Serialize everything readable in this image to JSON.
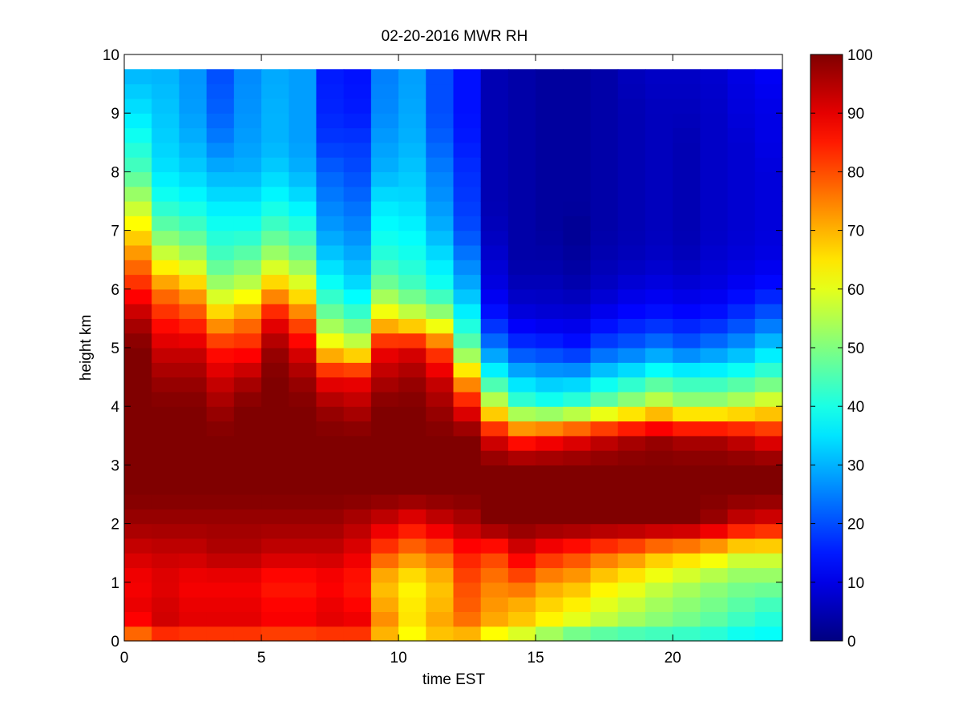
{
  "chart_data": {
    "type": "heatmap",
    "title": "02-20-2016 MWR RH",
    "xlabel": "time EST",
    "ylabel": "height km",
    "xlim": [
      0,
      24
    ],
    "ylim": [
      0,
      10
    ],
    "x_ticks": [
      0,
      5,
      10,
      15,
      20
    ],
    "y_ticks": [
      0,
      1,
      2,
      3,
      4,
      5,
      6,
      7,
      8,
      9,
      10
    ],
    "colorbar": {
      "range": [
        0,
        100
      ],
      "ticks": [
        0,
        10,
        20,
        30,
        40,
        50,
        60,
        70,
        80,
        90,
        100
      ],
      "colormap": "jet"
    },
    "time_hours": [
      0.5,
      1.5,
      2.5,
      3.5,
      4.5,
      5.5,
      6.5,
      7.5,
      8.5,
      9.5,
      10.5,
      11.5,
      12.5,
      13.5,
      14.5,
      15.5,
      16.5,
      17.5,
      18.5,
      19.5,
      20.5,
      21.5,
      22.5,
      23.5
    ],
    "height_profile_km": [
      0.0,
      0.25,
      0.5,
      1.0,
      1.5,
      2.0,
      2.5,
      3.0,
      3.5,
      4.0,
      4.5,
      5.0,
      5.5,
      6.0,
      6.5,
      7.0,
      7.5,
      8.0,
      8.5,
      9.0,
      9.75
    ],
    "rh_percent": [
      [
        70,
        85,
        90,
        88,
        92,
        97,
        100,
        100,
        100,
        100,
        100,
        100,
        95,
        85,
        75,
        65,
        55,
        45,
        40,
        35,
        30
      ],
      [
        75,
        92,
        92,
        90,
        93,
        97,
        100,
        100,
        100,
        100,
        97,
        92,
        85,
        75,
        60,
        48,
        40,
        35,
        33,
        32,
        30
      ],
      [
        75,
        90,
        90,
        88,
        93,
        97,
        100,
        100,
        100,
        100,
        97,
        92,
        82,
        70,
        55,
        45,
        38,
        33,
        30,
        28,
        27
      ],
      [
        75,
        90,
        90,
        88,
        95,
        97,
        100,
        100,
        100,
        97,
        92,
        85,
        70,
        55,
        45,
        40,
        35,
        30,
        25,
        22,
        20
      ],
      [
        75,
        90,
        90,
        88,
        95,
        97,
        100,
        100,
        100,
        100,
        95,
        85,
        75,
        58,
        48,
        40,
        35,
        30,
        28,
        27,
        26
      ],
      [
        75,
        88,
        88,
        85,
        93,
        97,
        100,
        100,
        100,
        100,
        100,
        97,
        88,
        70,
        55,
        45,
        38,
        33,
        30,
        30,
        29
      ],
      [
        75,
        88,
        88,
        85,
        93,
        97,
        100,
        100,
        100,
        100,
        97,
        90,
        78,
        62,
        50,
        42,
        35,
        30,
        28,
        28,
        28
      ],
      [
        75,
        90,
        90,
        87,
        93,
        97,
        100,
        100,
        100,
        97,
        88,
        65,
        50,
        40,
        33,
        28,
        25,
        22,
        18,
        16,
        15
      ],
      [
        75,
        90,
        88,
        85,
        90,
        95,
        100,
        100,
        100,
        95,
        88,
        60,
        45,
        35,
        30,
        26,
        23,
        20,
        18,
        15,
        14
      ],
      [
        65,
        75,
        72,
        68,
        80,
        92,
        100,
        100,
        100,
        100,
        95,
        88,
        65,
        50,
        42,
        38,
        35,
        30,
        28,
        26,
        25
      ],
      [
        60,
        65,
        65,
        63,
        75,
        88,
        100,
        100,
        100,
        100,
        97,
        90,
        60,
        45,
        40,
        37,
        34,
        32,
        30,
        29,
        28
      ],
      [
        65,
        72,
        70,
        68,
        78,
        92,
        100,
        100,
        100,
        97,
        92,
        80,
        55,
        40,
        35,
        30,
        27,
        25,
        22,
        20,
        20
      ],
      [
        65,
        75,
        78,
        80,
        85,
        95,
        100,
        100,
        100,
        88,
        70,
        48,
        38,
        30,
        25,
        20,
        18,
        17,
        15,
        14,
        14
      ],
      [
        55,
        70,
        72,
        75,
        82,
        100,
        100,
        100,
        90,
        60,
        40,
        25,
        15,
        10,
        8,
        6,
        5,
        5,
        5,
        5,
        5
      ],
      [
        50,
        68,
        68,
        78,
        90,
        100,
        100,
        100,
        82,
        45,
        32,
        18,
        10,
        6,
        4,
        4,
        4,
        4,
        4,
        4,
        4
      ],
      [
        45,
        62,
        65,
        72,
        85,
        100,
        100,
        100,
        85,
        42,
        30,
        17,
        9,
        6,
        4,
        3,
        3,
        3,
        3,
        3,
        3
      ],
      [
        40,
        58,
        62,
        70,
        82,
        100,
        100,
        100,
        88,
        45,
        30,
        15,
        9,
        5,
        3,
        2,
        3,
        3,
        3,
        3,
        3
      ],
      [
        38,
        55,
        58,
        65,
        78,
        100,
        100,
        100,
        92,
        50,
        35,
        20,
        12,
        7,
        5,
        4,
        4,
        4,
        4,
        4,
        4
      ],
      [
        38,
        52,
        55,
        62,
        75,
        100,
        100,
        100,
        95,
        55,
        38,
        22,
        14,
        9,
        6,
        5,
        5,
        5,
        5,
        5,
        6
      ],
      [
        38,
        50,
        52,
        58,
        70,
        100,
        100,
        100,
        97,
        60,
        42,
        25,
        15,
        10,
        7,
        6,
        6,
        6,
        6,
        6,
        7
      ],
      [
        38,
        48,
        50,
        55,
        68,
        100,
        100,
        100,
        95,
        55,
        40,
        22,
        14,
        9,
        6,
        5,
        5,
        5,
        5,
        6,
        7
      ],
      [
        38,
        45,
        48,
        52,
        65,
        97,
        100,
        100,
        95,
        55,
        40,
        25,
        15,
        10,
        8,
        7,
        7,
        7,
        7,
        7,
        8
      ],
      [
        36,
        42,
        45,
        50,
        60,
        92,
        100,
        100,
        92,
        58,
        42,
        28,
        18,
        12,
        9,
        8,
        8,
        8,
        8,
        9,
        10
      ],
      [
        36,
        40,
        42,
        50,
        60,
        90,
        100,
        100,
        88,
        62,
        45,
        33,
        22,
        14,
        10,
        9,
        9,
        9,
        10,
        10,
        12
      ]
    ]
  }
}
